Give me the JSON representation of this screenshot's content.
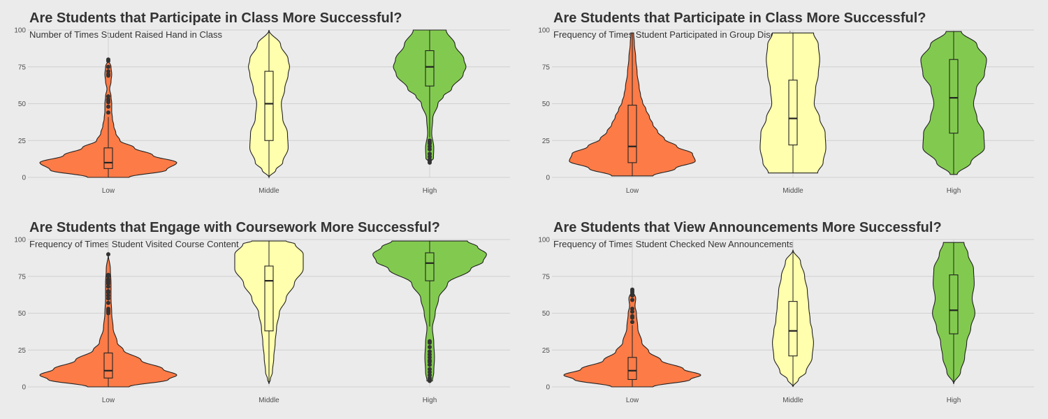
{
  "colors": {
    "Low": "#fc7b47",
    "Middle": "#ffffad",
    "High": "#82ca4f",
    "background": "#ebebeb",
    "grid": "#d0d0d0",
    "outline": "#222222"
  },
  "chart_data": [
    {
      "type": "violin",
      "title": "Are Students that Participate in Class More Successful?",
      "subtitle": "Number of Times Student Raised Hand in Class",
      "categories": [
        "Low",
        "Middle",
        "High"
      ],
      "y_ticks": [
        0,
        25,
        50,
        75,
        100
      ],
      "ylim": [
        0,
        100
      ],
      "grid": true,
      "groups": [
        {
          "name": "Low",
          "min": 0,
          "max": 80,
          "q1": 6,
          "median": 10,
          "q3": 20,
          "whisker_low": 0,
          "whisker_high": 41,
          "outliers": [
            44,
            48,
            51,
            52,
            53,
            55,
            69,
            70,
            72,
            75,
            79,
            80
          ],
          "density": [
            [
              0,
              0.3
            ],
            [
              5,
              0.85
            ],
            [
              10,
              1.0
            ],
            [
              15,
              0.65
            ],
            [
              20,
              0.38
            ],
            [
              25,
              0.17
            ],
            [
              30,
              0.11
            ],
            [
              35,
              0.08
            ],
            [
              40,
              0.06
            ],
            [
              45,
              0.05
            ],
            [
              50,
              0.05
            ],
            [
              55,
              0.04
            ],
            [
              60,
              0.02
            ],
            [
              65,
              0.04
            ],
            [
              70,
              0.05
            ],
            [
              75,
              0.04
            ],
            [
              80,
              0.0
            ]
          ]
        },
        {
          "name": "Middle",
          "min": 0,
          "max": 100,
          "q1": 25,
          "median": 50,
          "q3": 72,
          "whisker_low": 0,
          "whisker_high": 100,
          "outliers": [],
          "density": [
            [
              0,
              0.0
            ],
            [
              5,
              0.1
            ],
            [
              10,
              0.2
            ],
            [
              20,
              0.28
            ],
            [
              30,
              0.27
            ],
            [
              40,
              0.2
            ],
            [
              50,
              0.18
            ],
            [
              60,
              0.23
            ],
            [
              70,
              0.28
            ],
            [
              75,
              0.3
            ],
            [
              80,
              0.28
            ],
            [
              90,
              0.17
            ],
            [
              100,
              0.0
            ]
          ]
        },
        {
          "name": "High",
          "min": 10,
          "max": 100,
          "q1": 62,
          "median": 75,
          "q3": 86,
          "whisker_low": 27,
          "whisker_high": 100,
          "outliers": [
            10,
            11,
            12,
            14,
            16,
            19,
            21,
            23,
            24,
            25
          ],
          "density": [
            [
              10,
              0.0
            ],
            [
              13,
              0.055
            ],
            [
              20,
              0.06
            ],
            [
              30,
              0.03
            ],
            [
              40,
              0.045
            ],
            [
              50,
              0.12
            ],
            [
              55,
              0.2
            ],
            [
              60,
              0.32
            ],
            [
              70,
              0.49
            ],
            [
              75,
              0.53
            ],
            [
              80,
              0.5
            ],
            [
              90,
              0.37
            ],
            [
              100,
              0.24
            ]
          ]
        }
      ]
    },
    {
      "type": "violin",
      "title": "Are Students that Participate in Class More Successful?",
      "subtitle": "Frequency of Times Student Participated in Group Discussion",
      "categories": [
        "Low",
        "Middle",
        "High"
      ],
      "y_ticks": [
        0,
        25,
        50,
        75,
        100
      ],
      "ylim": [
        0,
        100
      ],
      "grid": true,
      "groups": [
        {
          "name": "Low",
          "min": 1,
          "max": 98,
          "q1": 10,
          "median": 21,
          "q3": 49,
          "whisker_low": 1,
          "whisker_high": 98,
          "outliers": [],
          "density": [
            [
              1,
              0.3
            ],
            [
              6,
              0.63
            ],
            [
              11,
              0.92
            ],
            [
              16,
              0.88
            ],
            [
              21,
              0.65
            ],
            [
              26,
              0.47
            ],
            [
              31,
              0.37
            ],
            [
              36,
              0.3
            ],
            [
              41,
              0.25
            ],
            [
              46,
              0.2
            ],
            [
              51,
              0.15
            ],
            [
              56,
              0.12
            ],
            [
              61,
              0.1
            ],
            [
              71,
              0.07
            ],
            [
              81,
              0.05
            ],
            [
              91,
              0.03
            ],
            [
              98,
              0.02
            ]
          ]
        },
        {
          "name": "Middle",
          "min": 3,
          "max": 98,
          "q1": 22,
          "median": 40,
          "q3": 66,
          "whisker_low": 3,
          "whisker_high": 98,
          "outliers": [],
          "density": [
            [
              3,
              0.36
            ],
            [
              10,
              0.44
            ],
            [
              20,
              0.48
            ],
            [
              30,
              0.47
            ],
            [
              40,
              0.39
            ],
            [
              50,
              0.31
            ],
            [
              60,
              0.33
            ],
            [
              70,
              0.37
            ],
            [
              80,
              0.39
            ],
            [
              90,
              0.37
            ],
            [
              98,
              0.3
            ]
          ]
        },
        {
          "name": "High",
          "min": 2,
          "max": 99,
          "q1": 30,
          "median": 54,
          "q3": 80,
          "whisker_low": 2,
          "whisker_high": 99,
          "outliers": [],
          "density": [
            [
              2,
              0.05
            ],
            [
              10,
              0.25
            ],
            [
              20,
              0.45
            ],
            [
              30,
              0.44
            ],
            [
              40,
              0.34
            ],
            [
              50,
              0.29
            ],
            [
              60,
              0.33
            ],
            [
              70,
              0.45
            ],
            [
              80,
              0.48
            ],
            [
              90,
              0.34
            ],
            [
              99,
              0.11
            ]
          ]
        }
      ]
    },
    {
      "type": "violin",
      "title": "Are Students that Engage with Coursework More Successful?",
      "subtitle": "Frequency of Times Student Visited Course Content",
      "categories": [
        "Low",
        "Middle",
        "High"
      ],
      "y_ticks": [
        0,
        25,
        50,
        75,
        100
      ],
      "ylim": [
        0,
        100
      ],
      "grid": true,
      "groups": [
        {
          "name": "Low",
          "min": 0,
          "max": 90,
          "q1": 6,
          "median": 11,
          "q3": 23,
          "whisker_low": 0,
          "whisker_high": 49,
          "outliers": [
            50,
            51,
            52,
            53,
            57,
            60,
            62,
            64,
            65,
            68,
            70,
            71,
            72,
            73,
            75,
            76,
            90
          ],
          "density": [
            [
              0,
              0.3
            ],
            [
              5,
              0.88
            ],
            [
              8,
              1.0
            ],
            [
              12,
              0.8
            ],
            [
              18,
              0.48
            ],
            [
              25,
              0.22
            ],
            [
              30,
              0.13
            ],
            [
              40,
              0.07
            ],
            [
              50,
              0.05
            ],
            [
              60,
              0.04
            ],
            [
              70,
              0.04
            ],
            [
              80,
              0.03
            ],
            [
              90,
              0.0
            ]
          ]
        },
        {
          "name": "Middle",
          "min": 2,
          "max": 99,
          "q1": 38,
          "median": 72,
          "q3": 82,
          "whisker_low": 2,
          "whisker_high": 99,
          "outliers": [],
          "density": [
            [
              2,
              0.0
            ],
            [
              5,
              0.02
            ],
            [
              10,
              0.05
            ],
            [
              20,
              0.07
            ],
            [
              30,
              0.09
            ],
            [
              40,
              0.11
            ],
            [
              50,
              0.15
            ],
            [
              60,
              0.25
            ],
            [
              70,
              0.37
            ],
            [
              80,
              0.5
            ],
            [
              90,
              0.5
            ],
            [
              97,
              0.38
            ],
            [
              99,
              0.25
            ]
          ]
        },
        {
          "name": "High",
          "min": 4,
          "max": 99,
          "q1": 72,
          "median": 84,
          "q3": 91,
          "whisker_low": 41,
          "whisker_high": 99,
          "outliers": [
            4,
            5,
            6,
            8,
            10,
            12,
            15,
            17,
            18,
            20,
            22,
            24,
            27,
            30,
            31
          ],
          "density": [
            [
              4,
              0.04
            ],
            [
              10,
              0.06
            ],
            [
              20,
              0.07
            ],
            [
              30,
              0.06
            ],
            [
              40,
              0.04
            ],
            [
              50,
              0.08
            ],
            [
              60,
              0.13
            ],
            [
              70,
              0.26
            ],
            [
              80,
              0.6
            ],
            [
              85,
              0.78
            ],
            [
              90,
              0.83
            ],
            [
              95,
              0.7
            ],
            [
              99,
              0.55
            ]
          ]
        }
      ]
    },
    {
      "type": "violin",
      "title": "Are Students that View Announcements More Successful?",
      "subtitle": "Frequency of Times Student Checked New Announcements",
      "categories": [
        "Low",
        "Middle",
        "High"
      ],
      "y_ticks": [
        0,
        25,
        50,
        75,
        100
      ],
      "ylim": [
        0,
        100
      ],
      "grid": true,
      "groups": [
        {
          "name": "Low",
          "min": 0,
          "max": 66,
          "q1": 5,
          "median": 11,
          "q3": 20,
          "whisker_low": 0,
          "whisker_high": 42,
          "outliers": [
            44,
            47,
            48,
            51,
            53,
            59,
            62,
            64,
            65,
            66
          ],
          "density": [
            [
              0,
              0.3
            ],
            [
              5,
              0.85
            ],
            [
              8,
              1.0
            ],
            [
              12,
              0.75
            ],
            [
              18,
              0.42
            ],
            [
              24,
              0.24
            ],
            [
              30,
              0.14
            ],
            [
              40,
              0.08
            ],
            [
              50,
              0.06
            ],
            [
              55,
              0.04
            ],
            [
              60,
              0.05
            ],
            [
              66,
              0.0
            ]
          ]
        },
        {
          "name": "Middle",
          "min": 0,
          "max": 93,
          "q1": 21,
          "median": 38,
          "q3": 58,
          "whisker_low": 0,
          "whisker_high": 93,
          "outliers": [],
          "density": [
            [
              0,
              0.0
            ],
            [
              5,
              0.08
            ],
            [
              10,
              0.19
            ],
            [
              20,
              0.28
            ],
            [
              30,
              0.3
            ],
            [
              38,
              0.28
            ],
            [
              45,
              0.25
            ],
            [
              55,
              0.23
            ],
            [
              65,
              0.21
            ],
            [
              75,
              0.17
            ],
            [
              85,
              0.11
            ],
            [
              93,
              0.0
            ]
          ]
        },
        {
          "name": "High",
          "min": 2,
          "max": 98,
          "q1": 36,
          "median": 52,
          "q3": 76,
          "whisker_low": 2,
          "whisker_high": 98,
          "outliers": [],
          "density": [
            [
              2,
              0.0
            ],
            [
              10,
              0.1
            ],
            [
              20,
              0.16
            ],
            [
              30,
              0.19
            ],
            [
              40,
              0.25
            ],
            [
              50,
              0.31
            ],
            [
              60,
              0.27
            ],
            [
              70,
              0.3
            ],
            [
              80,
              0.29
            ],
            [
              90,
              0.21
            ],
            [
              98,
              0.15
            ]
          ]
        }
      ]
    }
  ]
}
